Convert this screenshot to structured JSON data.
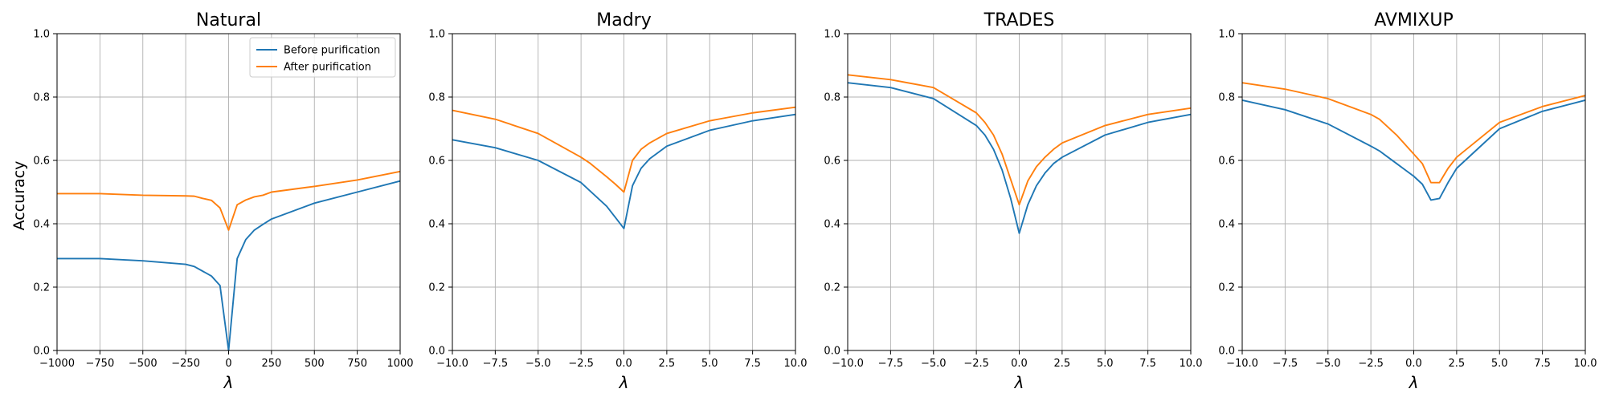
{
  "ylabel": "Accuracy",
  "legend": {
    "placement": "upper-right",
    "entries": [
      "Before purification",
      "After purification"
    ]
  },
  "colors": {
    "before": "#1f77b4",
    "after": "#ff7f0e",
    "grid": "#b0b0b0"
  },
  "chart_data": [
    {
      "type": "line",
      "title": "Natural",
      "xlabel": "λ",
      "ylabel": "Accuracy",
      "xlim": [
        -1000,
        1000
      ],
      "ylim": [
        0,
        1
      ],
      "grid": true,
      "xticks": [
        -1000,
        -750,
        -500,
        -250,
        0,
        250,
        500,
        750,
        1000
      ],
      "xtick_labels": [
        "−1000",
        "−750",
        "−500",
        "−250",
        "0",
        "250",
        "500",
        "750",
        "1000"
      ],
      "yticks": [
        0,
        0.2,
        0.4,
        0.6,
        0.8,
        1.0
      ],
      "ytick_labels": [
        "0.0",
        "0.2",
        "0.4",
        "0.6",
        "0.8",
        "1.0"
      ],
      "legend": [
        "Before purification",
        "After purification"
      ],
      "series": [
        {
          "name": "Before purification",
          "x": [
            -1000,
            -750,
            -500,
            -250,
            -200,
            -150,
            -100,
            -50,
            0,
            50,
            100,
            150,
            200,
            250,
            500,
            750,
            1000
          ],
          "y": [
            0.29,
            0.29,
            0.283,
            0.272,
            0.265,
            0.25,
            0.235,
            0.205,
            0.0,
            0.29,
            0.35,
            0.38,
            0.398,
            0.415,
            0.465,
            0.5,
            0.535
          ]
        },
        {
          "name": "After purification",
          "x": [
            -1000,
            -750,
            -500,
            -250,
            -200,
            -150,
            -100,
            -50,
            0,
            50,
            100,
            150,
            200,
            250,
            500,
            750,
            1000
          ],
          "y": [
            0.495,
            0.495,
            0.49,
            0.488,
            0.487,
            0.48,
            0.474,
            0.45,
            0.38,
            0.46,
            0.475,
            0.485,
            0.49,
            0.5,
            0.518,
            0.538,
            0.565
          ]
        }
      ]
    },
    {
      "type": "line",
      "title": "Madry",
      "xlabel": "λ",
      "xlim": [
        -10,
        10
      ],
      "ylim": [
        0,
        1
      ],
      "grid": true,
      "xticks": [
        -10,
        -7.5,
        -5,
        -2.5,
        0,
        2.5,
        5,
        7.5,
        10
      ],
      "xtick_labels": [
        "−10.0",
        "−7.5",
        "−5.0",
        "−2.5",
        "0.0",
        "2.5",
        "5.0",
        "7.5",
        "10.0"
      ],
      "yticks": [
        0,
        0.2,
        0.4,
        0.6,
        0.8,
        1.0
      ],
      "ytick_labels": [
        "0.0",
        "0.2",
        "0.4",
        "0.6",
        "0.8",
        "1.0"
      ],
      "series": [
        {
          "name": "Before purification",
          "x": [
            -10,
            -7.5,
            -5,
            -2.5,
            -2,
            -1.5,
            -1,
            -0.5,
            0,
            0.5,
            1,
            1.5,
            2,
            2.5,
            5,
            7.5,
            10
          ],
          "y": [
            0.665,
            0.64,
            0.6,
            0.53,
            0.505,
            0.48,
            0.455,
            0.42,
            0.385,
            0.52,
            0.575,
            0.605,
            0.625,
            0.645,
            0.695,
            0.725,
            0.745
          ]
        },
        {
          "name": "After purification",
          "x": [
            -10,
            -7.5,
            -5,
            -2.5,
            -2,
            -1.5,
            -1,
            -0.5,
            0,
            0.5,
            1,
            1.5,
            2,
            2.5,
            5,
            7.5,
            10
          ],
          "y": [
            0.758,
            0.73,
            0.685,
            0.61,
            0.592,
            0.57,
            0.548,
            0.525,
            0.5,
            0.6,
            0.635,
            0.655,
            0.67,
            0.685,
            0.725,
            0.75,
            0.768
          ]
        }
      ]
    },
    {
      "type": "line",
      "title": "TRADES",
      "xlabel": "λ",
      "xlim": [
        -10,
        10
      ],
      "ylim": [
        0,
        1
      ],
      "grid": true,
      "xticks": [
        -10,
        -7.5,
        -5,
        -2.5,
        0,
        2.5,
        5,
        7.5,
        10
      ],
      "xtick_labels": [
        "−10.0",
        "−7.5",
        "−5.0",
        "−2.5",
        "0.0",
        "2.5",
        "5.0",
        "7.5",
        "10.0"
      ],
      "yticks": [
        0,
        0.2,
        0.4,
        0.6,
        0.8,
        1.0
      ],
      "ytick_labels": [
        "0.0",
        "0.2",
        "0.4",
        "0.6",
        "0.8",
        "1.0"
      ],
      "series": [
        {
          "name": "Before purification",
          "x": [
            -10,
            -7.5,
            -5,
            -2.5,
            -2,
            -1.5,
            -1,
            -0.5,
            0,
            0.5,
            1,
            1.5,
            2,
            2.5,
            5,
            7.5,
            10
          ],
          "y": [
            0.845,
            0.83,
            0.795,
            0.71,
            0.68,
            0.635,
            0.57,
            0.48,
            0.37,
            0.46,
            0.52,
            0.56,
            0.59,
            0.61,
            0.68,
            0.72,
            0.745
          ]
        },
        {
          "name": "After purification",
          "x": [
            -10,
            -7.5,
            -5,
            -2.5,
            -2,
            -1.5,
            -1,
            -0.5,
            0,
            0.5,
            1,
            1.5,
            2,
            2.5,
            5,
            7.5,
            10
          ],
          "y": [
            0.87,
            0.855,
            0.83,
            0.75,
            0.72,
            0.68,
            0.62,
            0.54,
            0.46,
            0.535,
            0.58,
            0.61,
            0.635,
            0.655,
            0.71,
            0.745,
            0.765
          ]
        }
      ]
    },
    {
      "type": "line",
      "title": "AVMIXUP",
      "xlabel": "λ",
      "xlim": [
        -10,
        10
      ],
      "ylim": [
        0,
        1
      ],
      "grid": true,
      "xticks": [
        -10,
        -7.5,
        -5,
        -2.5,
        0,
        2.5,
        5,
        7.5,
        10
      ],
      "xtick_labels": [
        "−10.0",
        "−7.5",
        "−5.0",
        "−2.5",
        "0.0",
        "2.5",
        "5.0",
        "7.5",
        "10.0"
      ],
      "yticks": [
        0,
        0.2,
        0.4,
        0.6,
        0.8,
        1.0
      ],
      "ytick_labels": [
        "0.0",
        "0.2",
        "0.4",
        "0.6",
        "0.8",
        "1.0"
      ],
      "series": [
        {
          "name": "Before purification",
          "x": [
            -10,
            -7.5,
            -5,
            -2.5,
            -2,
            -1.5,
            -1,
            -0.5,
            0,
            0.5,
            1,
            1.5,
            2,
            2.5,
            5,
            7.5,
            10
          ],
          "y": [
            0.79,
            0.76,
            0.715,
            0.645,
            0.63,
            0.61,
            0.59,
            0.57,
            0.55,
            0.525,
            0.475,
            0.48,
            0.53,
            0.575,
            0.7,
            0.755,
            0.79
          ]
        },
        {
          "name": "After purification",
          "x": [
            -10,
            -7.5,
            -5,
            -2.5,
            -2,
            -1.5,
            -1,
            -0.5,
            0,
            0.5,
            1,
            1.5,
            2,
            2.5,
            5,
            7.5,
            10
          ],
          "y": [
            0.845,
            0.825,
            0.795,
            0.745,
            0.73,
            0.705,
            0.68,
            0.65,
            0.62,
            0.59,
            0.53,
            0.53,
            0.575,
            0.61,
            0.72,
            0.77,
            0.805
          ]
        }
      ]
    }
  ]
}
